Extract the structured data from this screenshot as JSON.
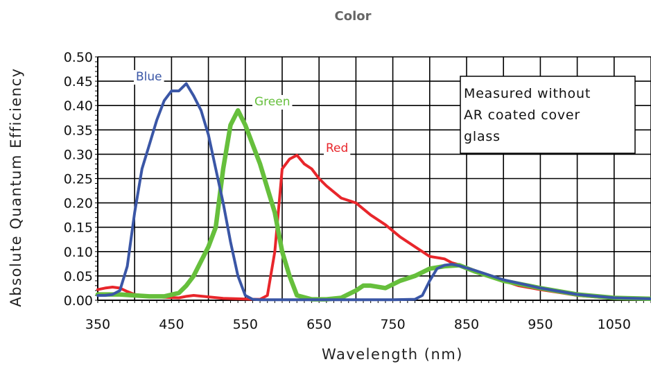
{
  "chart_data": {
    "type": "line",
    "title": "Color",
    "xlabel": "Wavelength (nm)",
    "ylabel": "Absolute Quantum Efficiency",
    "xlim": [
      350,
      1100
    ],
    "ylim": [
      0,
      0.5
    ],
    "grid": true,
    "xticks": [
      350,
      450,
      550,
      650,
      750,
      850,
      950,
      1050
    ],
    "xtick_labels": [
      "350",
      "450",
      "550",
      "650",
      "750",
      "850",
      "950",
      "1050"
    ],
    "yticks": [
      0,
      0.05,
      0.1,
      0.15,
      0.2,
      0.25,
      0.3,
      0.35,
      0.4,
      0.45,
      0.5
    ],
    "ytick_labels": [
      "0.00",
      "0.05",
      "0.10",
      "0.15",
      "0.20",
      "0.25",
      "0.30",
      "0.35",
      "0.40",
      "0.45",
      "0.50"
    ],
    "annotation": [
      "Measured without",
      "AR coated cover",
      "glass"
    ],
    "series": [
      {
        "name": "Red",
        "color": "#e8262b",
        "x": [
          350,
          360,
          370,
          380,
          390,
          400,
          420,
          440,
          460,
          470,
          480,
          500,
          520,
          540,
          560,
          570,
          580,
          590,
          600,
          610,
          620,
          630,
          640,
          650,
          660,
          680,
          690,
          700,
          720,
          740,
          760,
          780,
          800,
          820,
          830,
          840,
          860,
          880,
          900,
          920,
          950,
          980,
          1000,
          1030,
          1060,
          1100
        ],
        "y": [
          0.022,
          0.025,
          0.027,
          0.025,
          0.018,
          0.012,
          0.008,
          0.006,
          0.005,
          0.008,
          0.01,
          0.007,
          0.004,
          0.003,
          0.002,
          0.002,
          0.01,
          0.1,
          0.27,
          0.29,
          0.298,
          0.28,
          0.27,
          0.25,
          0.235,
          0.21,
          0.205,
          0.2,
          0.175,
          0.155,
          0.13,
          0.11,
          0.09,
          0.085,
          0.077,
          0.073,
          0.062,
          0.05,
          0.04,
          0.03,
          0.022,
          0.015,
          0.01,
          0.006,
          0.003,
          0.002
        ]
      },
      {
        "name": "Green",
        "color": "#66bf3c",
        "x": [
          350,
          380,
          400,
          420,
          440,
          460,
          470,
          480,
          500,
          510,
          520,
          530,
          540,
          550,
          560,
          570,
          580,
          590,
          600,
          610,
          620,
          640,
          660,
          680,
          700,
          710,
          720,
          740,
          760,
          780,
          800,
          820,
          840,
          860,
          880,
          900,
          950,
          1000,
          1050,
          1100
        ],
        "y": [
          0.012,
          0.012,
          0.01,
          0.008,
          0.008,
          0.015,
          0.03,
          0.05,
          0.11,
          0.15,
          0.27,
          0.36,
          0.39,
          0.36,
          0.32,
          0.28,
          0.23,
          0.18,
          0.1,
          0.05,
          0.01,
          0.002,
          0.002,
          0.005,
          0.02,
          0.03,
          0.03,
          0.025,
          0.04,
          0.05,
          0.065,
          0.07,
          0.072,
          0.06,
          0.05,
          0.04,
          0.025,
          0.012,
          0.005,
          0.003
        ]
      },
      {
        "name": "Blue",
        "color": "#3a56a6",
        "x": [
          350,
          360,
          370,
          380,
          390,
          400,
          410,
          420,
          430,
          440,
          450,
          460,
          470,
          480,
          490,
          500,
          510,
          520,
          530,
          540,
          550,
          560,
          570,
          600,
          650,
          700,
          750,
          780,
          790,
          800,
          810,
          820,
          830,
          840,
          860,
          880,
          900,
          950,
          1000,
          1050,
          1100
        ],
        "y": [
          0.01,
          0.01,
          0.012,
          0.02,
          0.07,
          0.18,
          0.27,
          0.32,
          0.37,
          0.41,
          0.43,
          0.43,
          0.445,
          0.42,
          0.39,
          0.34,
          0.27,
          0.2,
          0.12,
          0.05,
          0.01,
          0.002,
          0.001,
          0.001,
          0.001,
          0.001,
          0.001,
          0.002,
          0.01,
          0.04,
          0.065,
          0.072,
          0.074,
          0.071,
          0.062,
          0.052,
          0.042,
          0.025,
          0.012,
          0.005,
          0.003
        ]
      }
    ]
  }
}
